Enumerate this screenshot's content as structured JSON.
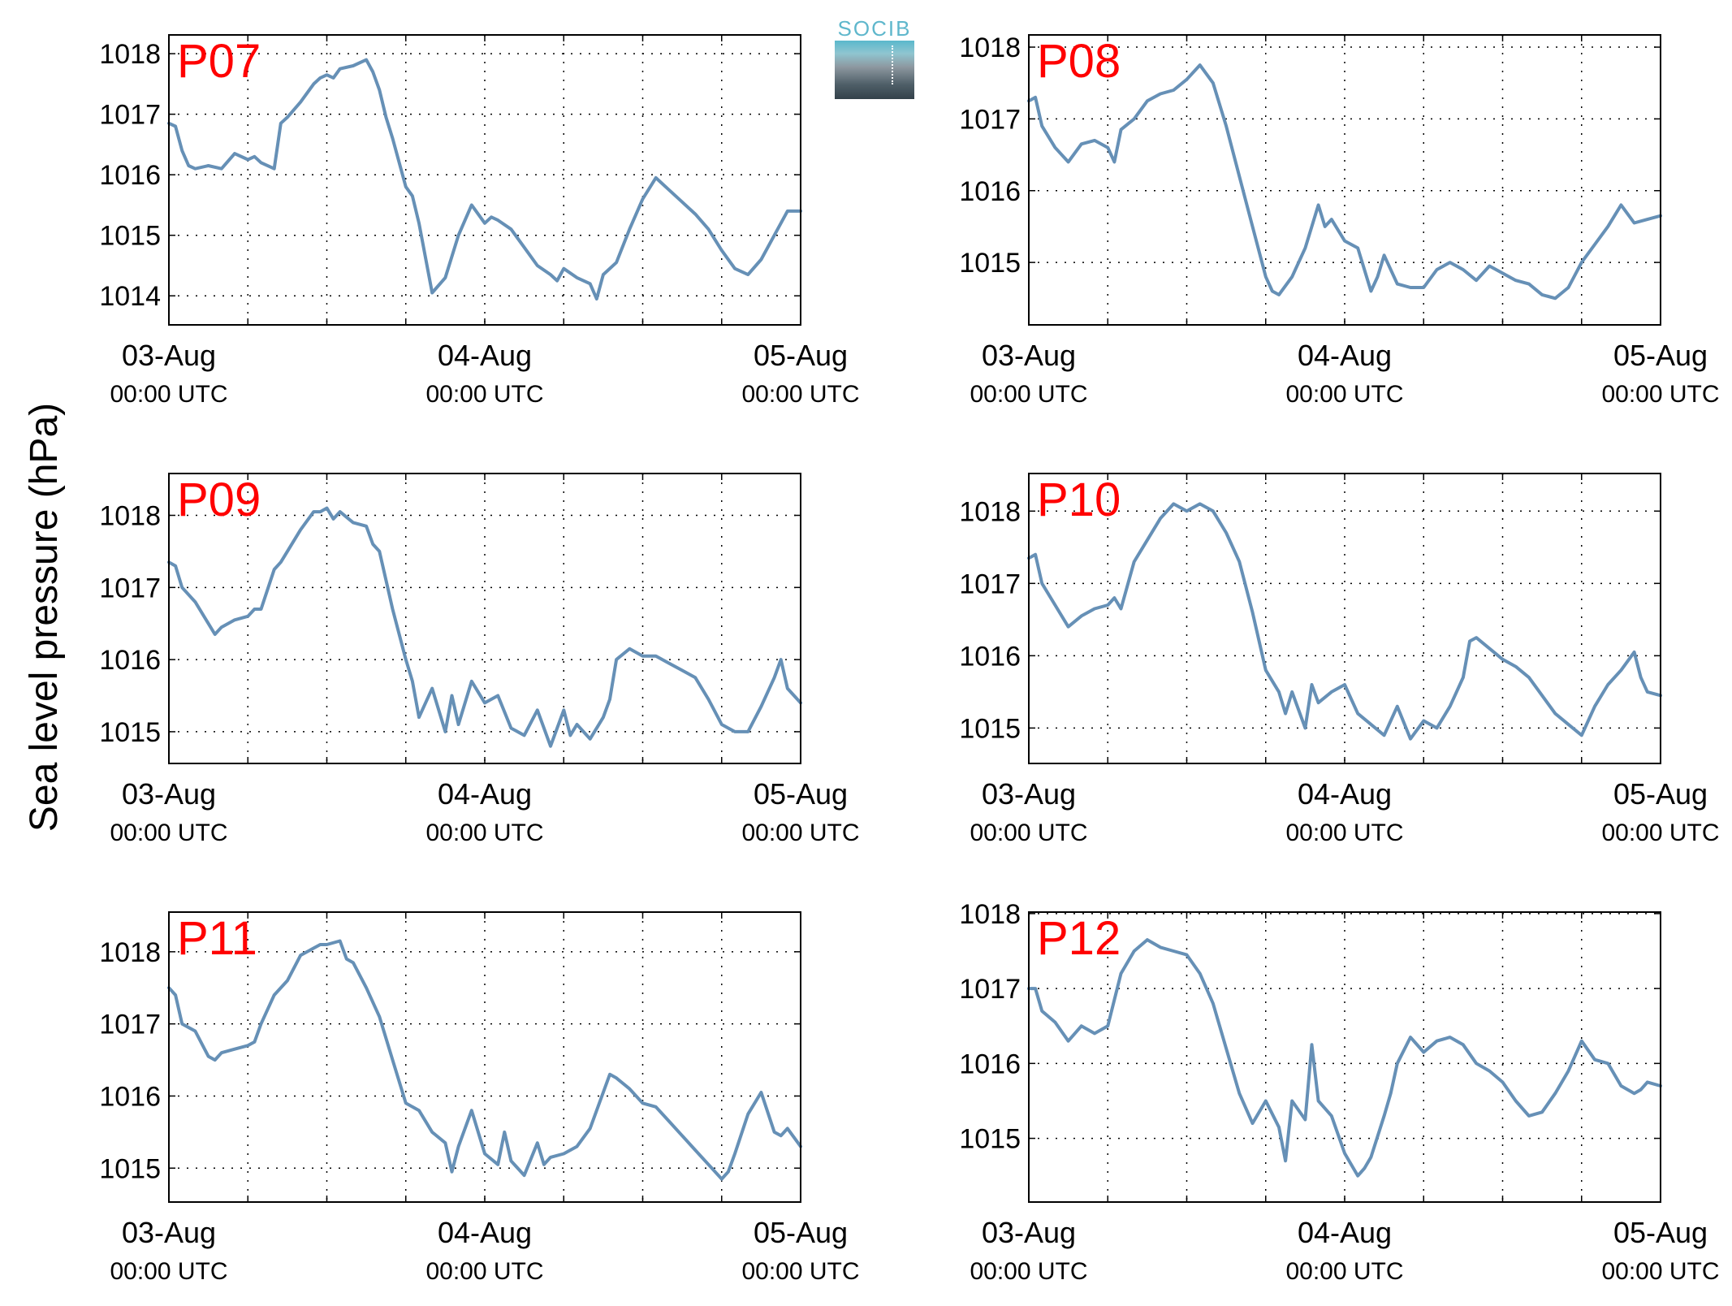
{
  "logo": {
    "text": "SOCIB"
  },
  "ylabel": "Sea level pressure (hPa)",
  "colors": {
    "line": "#6690b6",
    "panel_label": "#ff0000",
    "axis": "#000000",
    "grid": "#000000"
  },
  "chart_data": [
    {
      "type": "line",
      "label": "P07",
      "x_ticks": [
        {
          "main": "03-Aug",
          "sub": "00:00 UTC"
        },
        {
          "main": "04-Aug",
          "sub": "00:00 UTC"
        },
        {
          "main": "05-Aug",
          "sub": "00:00 UTC"
        }
      ],
      "xlim": [
        0,
        48
      ],
      "ylim": [
        1013.52,
        1018.31
      ],
      "yticks": [
        1014,
        1015,
        1016,
        1017,
        1018
      ],
      "x": [
        0,
        0.5,
        1,
        1.5,
        2,
        3,
        4,
        5,
        6,
        6.5,
        7,
        8,
        8.5,
        9,
        10,
        11,
        11.5,
        12,
        12.5,
        13,
        14,
        15,
        15.5,
        16,
        16.5,
        17,
        18,
        18.5,
        19,
        20,
        21,
        22,
        23,
        24,
        24.5,
        25,
        26,
        27,
        28,
        29,
        29.5,
        30,
        31,
        32,
        32.5,
        33,
        34,
        35,
        36,
        37,
        38,
        39,
        40,
        41,
        42,
        43,
        44,
        45,
        46,
        47,
        48
      ],
      "y": [
        1016.85,
        1016.8,
        1016.4,
        1016.15,
        1016.1,
        1016.15,
        1016.1,
        1016.35,
        1016.25,
        1016.3,
        1016.2,
        1016.1,
        1016.85,
        1016.95,
        1017.2,
        1017.5,
        1017.6,
        1017.65,
        1017.6,
        1017.75,
        1017.8,
        1017.9,
        1017.7,
        1017.4,
        1016.95,
        1016.6,
        1015.8,
        1015.65,
        1015.2,
        1014.05,
        1014.3,
        1015.0,
        1015.5,
        1015.2,
        1015.3,
        1015.25,
        1015.1,
        1014.8,
        1014.5,
        1014.35,
        1014.25,
        1014.45,
        1014.3,
        1014.2,
        1013.95,
        1014.35,
        1014.55,
        1015.1,
        1015.6,
        1015.95,
        1015.75,
        1015.55,
        1015.35,
        1015.1,
        1014.75,
        1014.45,
        1014.35,
        1014.6,
        1015.0,
        1015.4,
        1015.4
      ]
    },
    {
      "type": "line",
      "label": "P08",
      "x_ticks": [
        {
          "main": "03-Aug",
          "sub": "00:00 UTC"
        },
        {
          "main": "04-Aug",
          "sub": "00:00 UTC"
        },
        {
          "main": "05-Aug",
          "sub": "00:00 UTC"
        }
      ],
      "xlim": [
        0,
        48
      ],
      "ylim": [
        1014.13,
        1018.17
      ],
      "yticks": [
        1015,
        1016,
        1017,
        1018
      ],
      "x": [
        0,
        0.5,
        1,
        2,
        3,
        4,
        5,
        6,
        6.5,
        7,
        8,
        9,
        10,
        11,
        12,
        13,
        14,
        15,
        16,
        17,
        18,
        18.5,
        19,
        20,
        20.5,
        21,
        22,
        22.5,
        23,
        24,
        25,
        26,
        26.5,
        27,
        28,
        29,
        30,
        31,
        32,
        33,
        34,
        35,
        36,
        37,
        38,
        39,
        40,
        41,
        42,
        43,
        44,
        45,
        46,
        47,
        48
      ],
      "y": [
        1017.25,
        1017.3,
        1016.9,
        1016.6,
        1016.4,
        1016.65,
        1016.7,
        1016.6,
        1016.4,
        1016.85,
        1017.0,
        1017.25,
        1017.35,
        1017.4,
        1017.55,
        1017.75,
        1017.5,
        1016.9,
        1016.2,
        1015.5,
        1014.8,
        1014.6,
        1014.55,
        1014.8,
        1015.0,
        1015.2,
        1015.8,
        1015.5,
        1015.6,
        1015.3,
        1015.2,
        1014.6,
        1014.8,
        1015.1,
        1014.7,
        1014.65,
        1014.65,
        1014.9,
        1015.0,
        1014.9,
        1014.75,
        1014.95,
        1014.85,
        1014.75,
        1014.7,
        1014.55,
        1014.5,
        1014.65,
        1015.0,
        1015.25,
        1015.5,
        1015.8,
        1015.55,
        1015.6,
        1015.65
      ]
    },
    {
      "type": "line",
      "label": "P09",
      "x_ticks": [
        {
          "main": "03-Aug",
          "sub": "00:00 UTC"
        },
        {
          "main": "04-Aug",
          "sub": "00:00 UTC"
        },
        {
          "main": "05-Aug",
          "sub": "00:00 UTC"
        }
      ],
      "xlim": [
        0,
        48
      ],
      "ylim": [
        1014.56,
        1018.58
      ],
      "yticks": [
        1015,
        1016,
        1017,
        1018
      ],
      "x": [
        0,
        0.5,
        1,
        2,
        3,
        3.5,
        4,
        5,
        6,
        6.5,
        7,
        8,
        8.5,
        9,
        10,
        11,
        11.5,
        12,
        12.5,
        13,
        14,
        15,
        15.5,
        16,
        16.5,
        17,
        18,
        18.5,
        19,
        20,
        21,
        21.5,
        22,
        23,
        24,
        25,
        26,
        27,
        28,
        29,
        30,
        30.5,
        31,
        32,
        33,
        33.5,
        34,
        35,
        36,
        37,
        38,
        39,
        40,
        41,
        42,
        42.5,
        43,
        44,
        45,
        46,
        46.5,
        47,
        48
      ],
      "y": [
        1017.35,
        1017.3,
        1017.0,
        1016.8,
        1016.5,
        1016.35,
        1016.45,
        1016.55,
        1016.6,
        1016.7,
        1016.7,
        1017.25,
        1017.35,
        1017.5,
        1017.8,
        1018.05,
        1018.05,
        1018.1,
        1017.95,
        1018.05,
        1017.9,
        1017.85,
        1017.6,
        1017.5,
        1017.1,
        1016.7,
        1016.0,
        1015.7,
        1015.2,
        1015.6,
        1015.0,
        1015.5,
        1015.1,
        1015.7,
        1015.4,
        1015.5,
        1015.05,
        1014.95,
        1015.3,
        1014.8,
        1015.3,
        1014.95,
        1015.1,
        1014.9,
        1015.2,
        1015.45,
        1016.0,
        1016.15,
        1016.05,
        1016.05,
        1015.95,
        1015.85,
        1015.75,
        1015.45,
        1015.1,
        1015.05,
        1015.0,
        1015.0,
        1015.35,
        1015.75,
        1016.0,
        1015.6,
        1015.4
      ]
    },
    {
      "type": "line",
      "label": "P10",
      "x_ticks": [
        {
          "main": "03-Aug",
          "sub": "00:00 UTC"
        },
        {
          "main": "04-Aug",
          "sub": "00:00 UTC"
        },
        {
          "main": "05-Aug",
          "sub": "00:00 UTC"
        }
      ],
      "xlim": [
        0,
        48
      ],
      "ylim": [
        1014.51,
        1018.52
      ],
      "yticks": [
        1015,
        1016,
        1017,
        1018
      ],
      "x": [
        0,
        0.5,
        1,
        2,
        3,
        4,
        5,
        6,
        6.5,
        7,
        8,
        9,
        10,
        11,
        12,
        13,
        14,
        15,
        16,
        17,
        18,
        19,
        19.5,
        20,
        21,
        21.5,
        22,
        23,
        24,
        25,
        26,
        27,
        28,
        29,
        30,
        31,
        32,
        33,
        33.5,
        34,
        35,
        36,
        37,
        38,
        39,
        40,
        41,
        42,
        43,
        44,
        45,
        46,
        46.5,
        47,
        48
      ],
      "y": [
        1017.35,
        1017.4,
        1017.0,
        1016.7,
        1016.4,
        1016.55,
        1016.65,
        1016.7,
        1016.8,
        1016.65,
        1017.3,
        1017.6,
        1017.9,
        1018.1,
        1018.0,
        1018.1,
        1018.0,
        1017.7,
        1017.3,
        1016.6,
        1015.8,
        1015.5,
        1015.2,
        1015.5,
        1015.0,
        1015.6,
        1015.35,
        1015.5,
        1015.6,
        1015.2,
        1015.05,
        1014.9,
        1015.3,
        1014.85,
        1015.1,
        1015.0,
        1015.3,
        1015.7,
        1016.2,
        1016.25,
        1016.1,
        1015.95,
        1015.85,
        1015.7,
        1015.45,
        1015.2,
        1015.05,
        1014.9,
        1015.3,
        1015.6,
        1015.8,
        1016.05,
        1015.7,
        1015.5,
        1015.45
      ]
    },
    {
      "type": "line",
      "label": "P11",
      "x_ticks": [
        {
          "main": "03-Aug",
          "sub": "00:00 UTC"
        },
        {
          "main": "04-Aug",
          "sub": "00:00 UTC"
        },
        {
          "main": "05-Aug",
          "sub": "00:00 UTC"
        }
      ],
      "xlim": [
        0,
        48
      ],
      "ylim": [
        1014.53,
        1018.55
      ],
      "yticks": [
        1015,
        1016,
        1017,
        1018
      ],
      "x": [
        0,
        0.5,
        1,
        2,
        3,
        3.5,
        4,
        5,
        6,
        6.5,
        7,
        8,
        9,
        10,
        11,
        11.5,
        12,
        13,
        13.5,
        14,
        15,
        16,
        17,
        18,
        19,
        20,
        21,
        21.5,
        22,
        23,
        24,
        25,
        25.5,
        26,
        27,
        28,
        28.5,
        29,
        30,
        31,
        32,
        33,
        33.5,
        34,
        35,
        36,
        37,
        38,
        39,
        40,
        41,
        42,
        42.5,
        43,
        44,
        45,
        46,
        46.5,
        47,
        48
      ],
      "y": [
        1017.5,
        1017.4,
        1017.0,
        1016.9,
        1016.55,
        1016.5,
        1016.6,
        1016.65,
        1016.7,
        1016.75,
        1017.0,
        1017.4,
        1017.6,
        1017.95,
        1018.05,
        1018.1,
        1018.1,
        1018.15,
        1017.9,
        1017.85,
        1017.5,
        1017.1,
        1016.5,
        1015.9,
        1015.8,
        1015.5,
        1015.35,
        1014.95,
        1015.3,
        1015.8,
        1015.2,
        1015.05,
        1015.5,
        1015.1,
        1014.9,
        1015.35,
        1015.05,
        1015.15,
        1015.2,
        1015.3,
        1015.55,
        1016.05,
        1016.3,
        1016.25,
        1016.1,
        1015.9,
        1015.85,
        1015.65,
        1015.45,
        1015.25,
        1015.05,
        1014.85,
        1014.95,
        1015.2,
        1015.75,
        1016.05,
        1015.5,
        1015.45,
        1015.55,
        1015.3
      ]
    },
    {
      "type": "line",
      "label": "P12",
      "x_ticks": [
        {
          "main": "03-Aug",
          "sub": "00:00 UTC"
        },
        {
          "main": "04-Aug",
          "sub": "00:00 UTC"
        },
        {
          "main": "05-Aug",
          "sub": "00:00 UTC"
        }
      ],
      "xlim": [
        0,
        48
      ],
      "ylim": [
        1014.15,
        1018.02
      ],
      "yticks": [
        1015,
        1016,
        1017,
        1018
      ],
      "x": [
        0,
        0.5,
        1,
        2,
        3,
        4,
        5,
        6,
        6.5,
        7,
        8,
        9,
        10,
        11,
        12,
        13,
        14,
        15,
        16,
        17,
        18,
        19,
        19.5,
        20,
        21,
        21.5,
        22,
        22.5,
        23,
        24,
        25,
        25.5,
        26,
        27,
        27.5,
        28,
        29,
        30,
        31,
        32,
        33,
        34,
        35,
        36,
        37,
        38,
        39,
        40,
        41,
        42,
        43,
        44,
        45,
        46,
        46.5,
        47,
        48
      ],
      "y": [
        1017.0,
        1017.0,
        1016.7,
        1016.55,
        1016.3,
        1016.5,
        1016.4,
        1016.5,
        1016.85,
        1017.2,
        1017.5,
        1017.65,
        1017.55,
        1017.5,
        1017.45,
        1017.2,
        1016.8,
        1016.2,
        1015.6,
        1015.2,
        1015.5,
        1015.15,
        1014.7,
        1015.5,
        1015.25,
        1016.25,
        1015.5,
        1015.4,
        1015.3,
        1014.8,
        1014.5,
        1014.6,
        1014.75,
        1015.3,
        1015.6,
        1016.0,
        1016.35,
        1016.15,
        1016.3,
        1016.35,
        1016.25,
        1016.0,
        1015.9,
        1015.75,
        1015.5,
        1015.3,
        1015.35,
        1015.6,
        1015.9,
        1016.3,
        1016.05,
        1016.0,
        1015.7,
        1015.6,
        1015.65,
        1015.75,
        1015.7
      ]
    }
  ]
}
